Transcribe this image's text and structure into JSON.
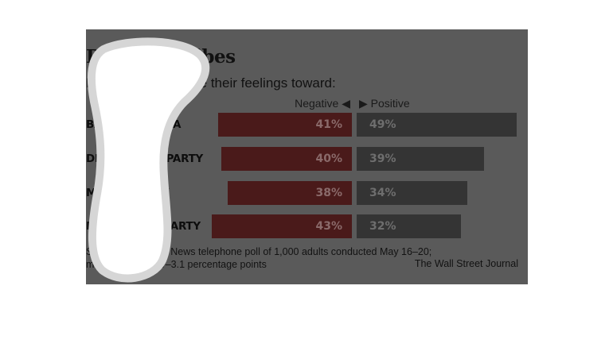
{
  "chart_data": {
    "type": "bar",
    "title": "Different Vibes",
    "subtitle": "How Americans rate their feelings toward:",
    "legend": {
      "negative": "Negative ◀",
      "positive": "▶ Positive"
    },
    "categories": [
      "BARACK OBAMA",
      "DEMOCRATIC PARTY",
      "MITT ROMNEY",
      "REPUBLICAN PARTY"
    ],
    "series": [
      {
        "name": "Negative",
        "values": [
          41,
          40,
          38,
          43
        ],
        "labels": [
          "41%",
          "40%",
          "38%",
          "43%"
        ],
        "color": "#4a1a1a"
      },
      {
        "name": "Positive",
        "values": [
          49,
          39,
          34,
          32
        ],
        "labels": [
          "49%",
          "39%",
          "34%",
          "32%"
        ],
        "color": "#343434"
      }
    ],
    "source_line1": "Source: WSJ/NBC News telephone poll of 1,000 adults conducted May 16–20;",
    "source_line2": "margin of error: +/–3.1 percentage points",
    "credit": "The Wall Street Journal"
  },
  "colors": {
    "panel": "#5a5a5a",
    "negative_bar": "#4a1a1a",
    "positive_bar": "#343434",
    "highlight_blob": "#ffffff"
  }
}
